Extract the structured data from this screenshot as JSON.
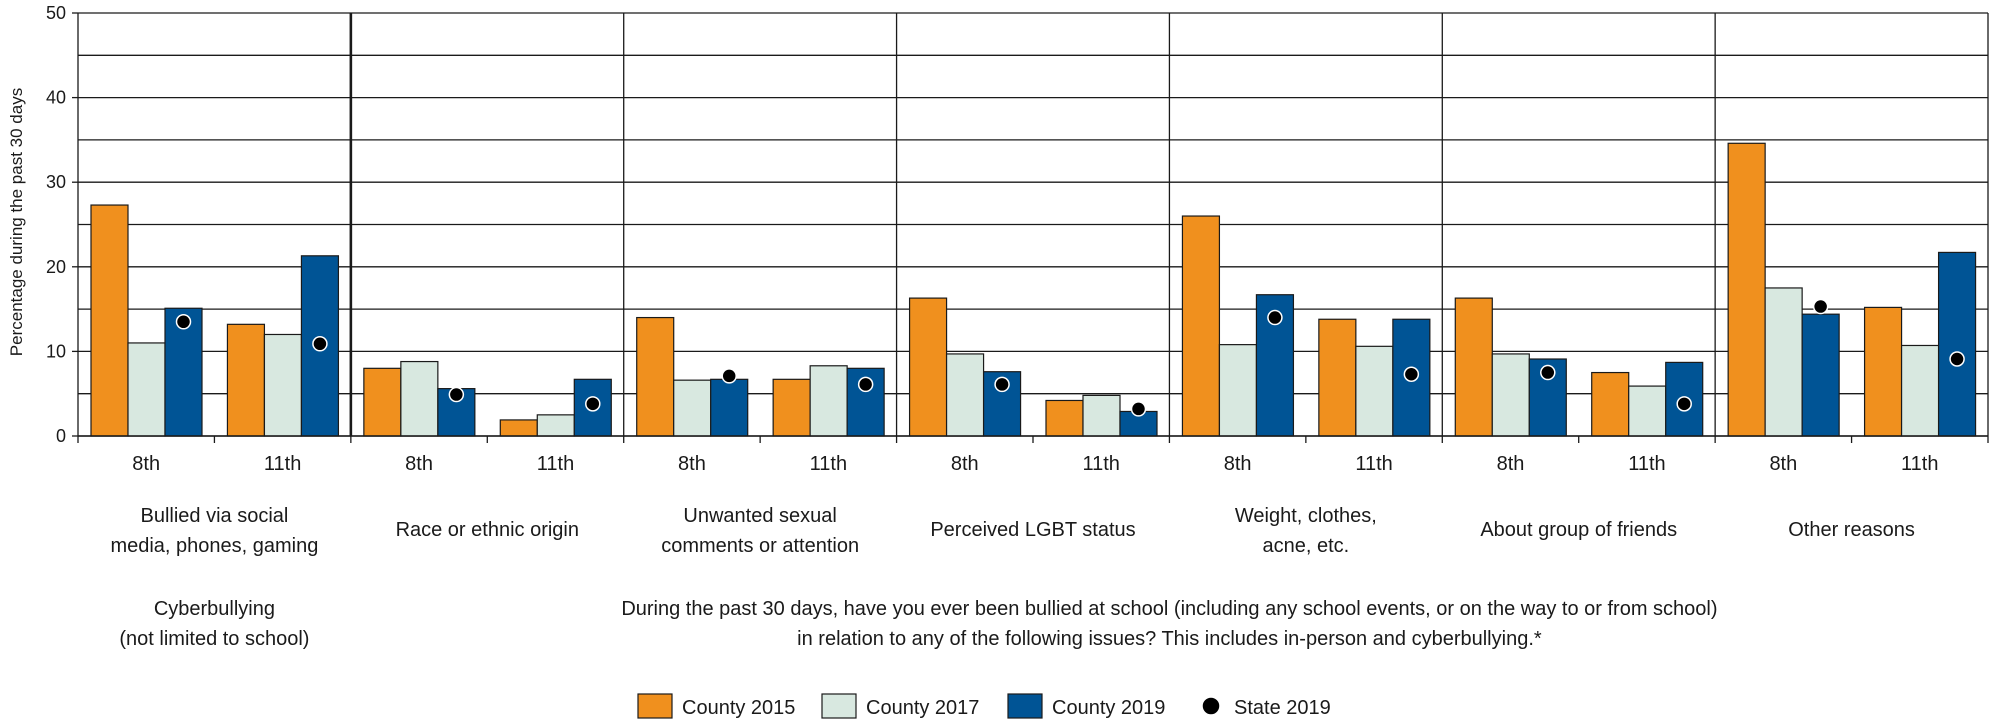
{
  "chart_data": {
    "type": "bar",
    "ylabel": "Percentage during the past 30 days",
    "ylim": [
      0,
      50
    ],
    "yticks": [
      0,
      10,
      20,
      30,
      40,
      50
    ],
    "grid": true,
    "legend_position": "bottom",
    "groups": [
      {
        "label_lines": [
          "Bullied via social",
          "media, phones, gaming"
        ]
      },
      {
        "label_lines": [
          "Race or ethnic origin"
        ]
      },
      {
        "label_lines": [
          "Unwanted sexual",
          "comments or attention"
        ]
      },
      {
        "label_lines": [
          "Perceived LGBT status"
        ]
      },
      {
        "label_lines": [
          "Weight, clothes,",
          "acne, etc."
        ]
      },
      {
        "label_lines": [
          "About group of friends"
        ]
      },
      {
        "label_lines": [
          "Other reasons"
        ]
      }
    ],
    "grades": [
      "8th",
      "11th"
    ],
    "section_labels": [
      {
        "lines": [
          "Cyberbullying",
          "(not limited to school)"
        ]
      },
      {
        "lines": [
          "During the past 30 days, have you ever been bullied at school (including any school events, or on the way to or from school)",
          "in relation to any of the following issues? This includes in-person and cyberbullying.*"
        ]
      }
    ],
    "series": [
      {
        "name": "County 2015",
        "color": "#f0901e",
        "values": [
          27.3,
          13.2,
          8.0,
          1.9,
          14.0,
          6.7,
          16.3,
          4.2,
          26.0,
          13.8,
          16.3,
          7.5,
          34.6,
          15.2
        ]
      },
      {
        "name": "County 2017",
        "color": "#d8e8e0",
        "values": [
          11.0,
          12.0,
          8.8,
          2.5,
          6.6,
          8.3,
          9.7,
          4.8,
          10.8,
          10.6,
          9.7,
          5.9,
          17.5,
          10.7
        ]
      },
      {
        "name": "County 2019",
        "color": "#005495",
        "values": [
          15.1,
          21.3,
          5.6,
          6.7,
          6.7,
          8.0,
          7.6,
          2.9,
          16.7,
          13.8,
          9.1,
          8.7,
          14.4,
          21.7
        ]
      }
    ],
    "markers": {
      "name": "State 2019",
      "color": "#000000",
      "values": [
        13.5,
        10.9,
        4.9,
        3.8,
        7.1,
        6.1,
        6.1,
        3.2,
        14.0,
        7.3,
        7.5,
        3.8,
        15.3,
        9.1
      ]
    }
  }
}
